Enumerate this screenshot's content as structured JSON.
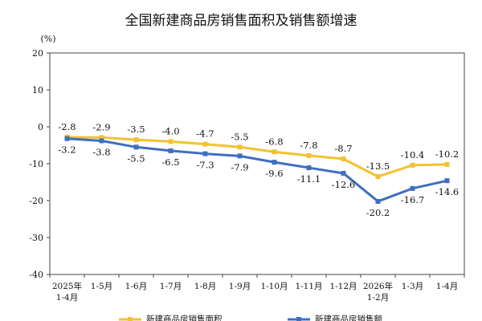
{
  "chart_data": {
    "type": "line",
    "title": "全国新建商品房销售面积及销售额增速",
    "unit_label": "(%)",
    "ylim": [
      -40,
      20
    ],
    "y_ticks": [
      20,
      10,
      0,
      -10,
      -20,
      -30,
      -40
    ],
    "categories": [
      [
        "2025年",
        "1-4月"
      ],
      [
        "1-5月"
      ],
      [
        "1-6月"
      ],
      [
        "1-7月"
      ],
      [
        "1-8月"
      ],
      [
        "1-9月"
      ],
      [
        "1-10月"
      ],
      [
        "1-11月"
      ],
      [
        "1-12月"
      ],
      [
        "2026年",
        "1-2月"
      ],
      [
        "1-3月"
      ],
      [
        "1-4月"
      ]
    ],
    "series": [
      {
        "name": "新建商品房销售面积",
        "color": "#F2C230",
        "values": [
          -2.8,
          -2.9,
          -3.5,
          -4.0,
          -4.7,
          -5.5,
          -6.8,
          -7.8,
          -8.7,
          -13.5,
          -10.4,
          -10.2
        ],
        "labels": [
          "-2.8",
          "-2.9",
          "-3.5",
          "-4.0",
          "-4.7",
          "-5.5",
          "-6.8",
          "-7.8",
          "-8.7",
          "-13.5",
          "-10.4",
          "-10.2"
        ],
        "label_position": "above"
      },
      {
        "name": "新建商品房销售额",
        "color": "#3F6FC0",
        "values": [
          -3.2,
          -3.8,
          -5.5,
          -6.5,
          -7.3,
          -7.9,
          -9.6,
          -11.1,
          -12.6,
          -20.2,
          -16.7,
          -14.6
        ],
        "labels": [
          "-3.2",
          "-3.8",
          "-5.5",
          "-6.5",
          "-7.3",
          "-7.9",
          "-9.6",
          "-11.1",
          "-12.6",
          "-20.2",
          "-16.7",
          "-14.6"
        ],
        "label_position": "below"
      }
    ],
    "grid": false,
    "legend": "bottom"
  }
}
